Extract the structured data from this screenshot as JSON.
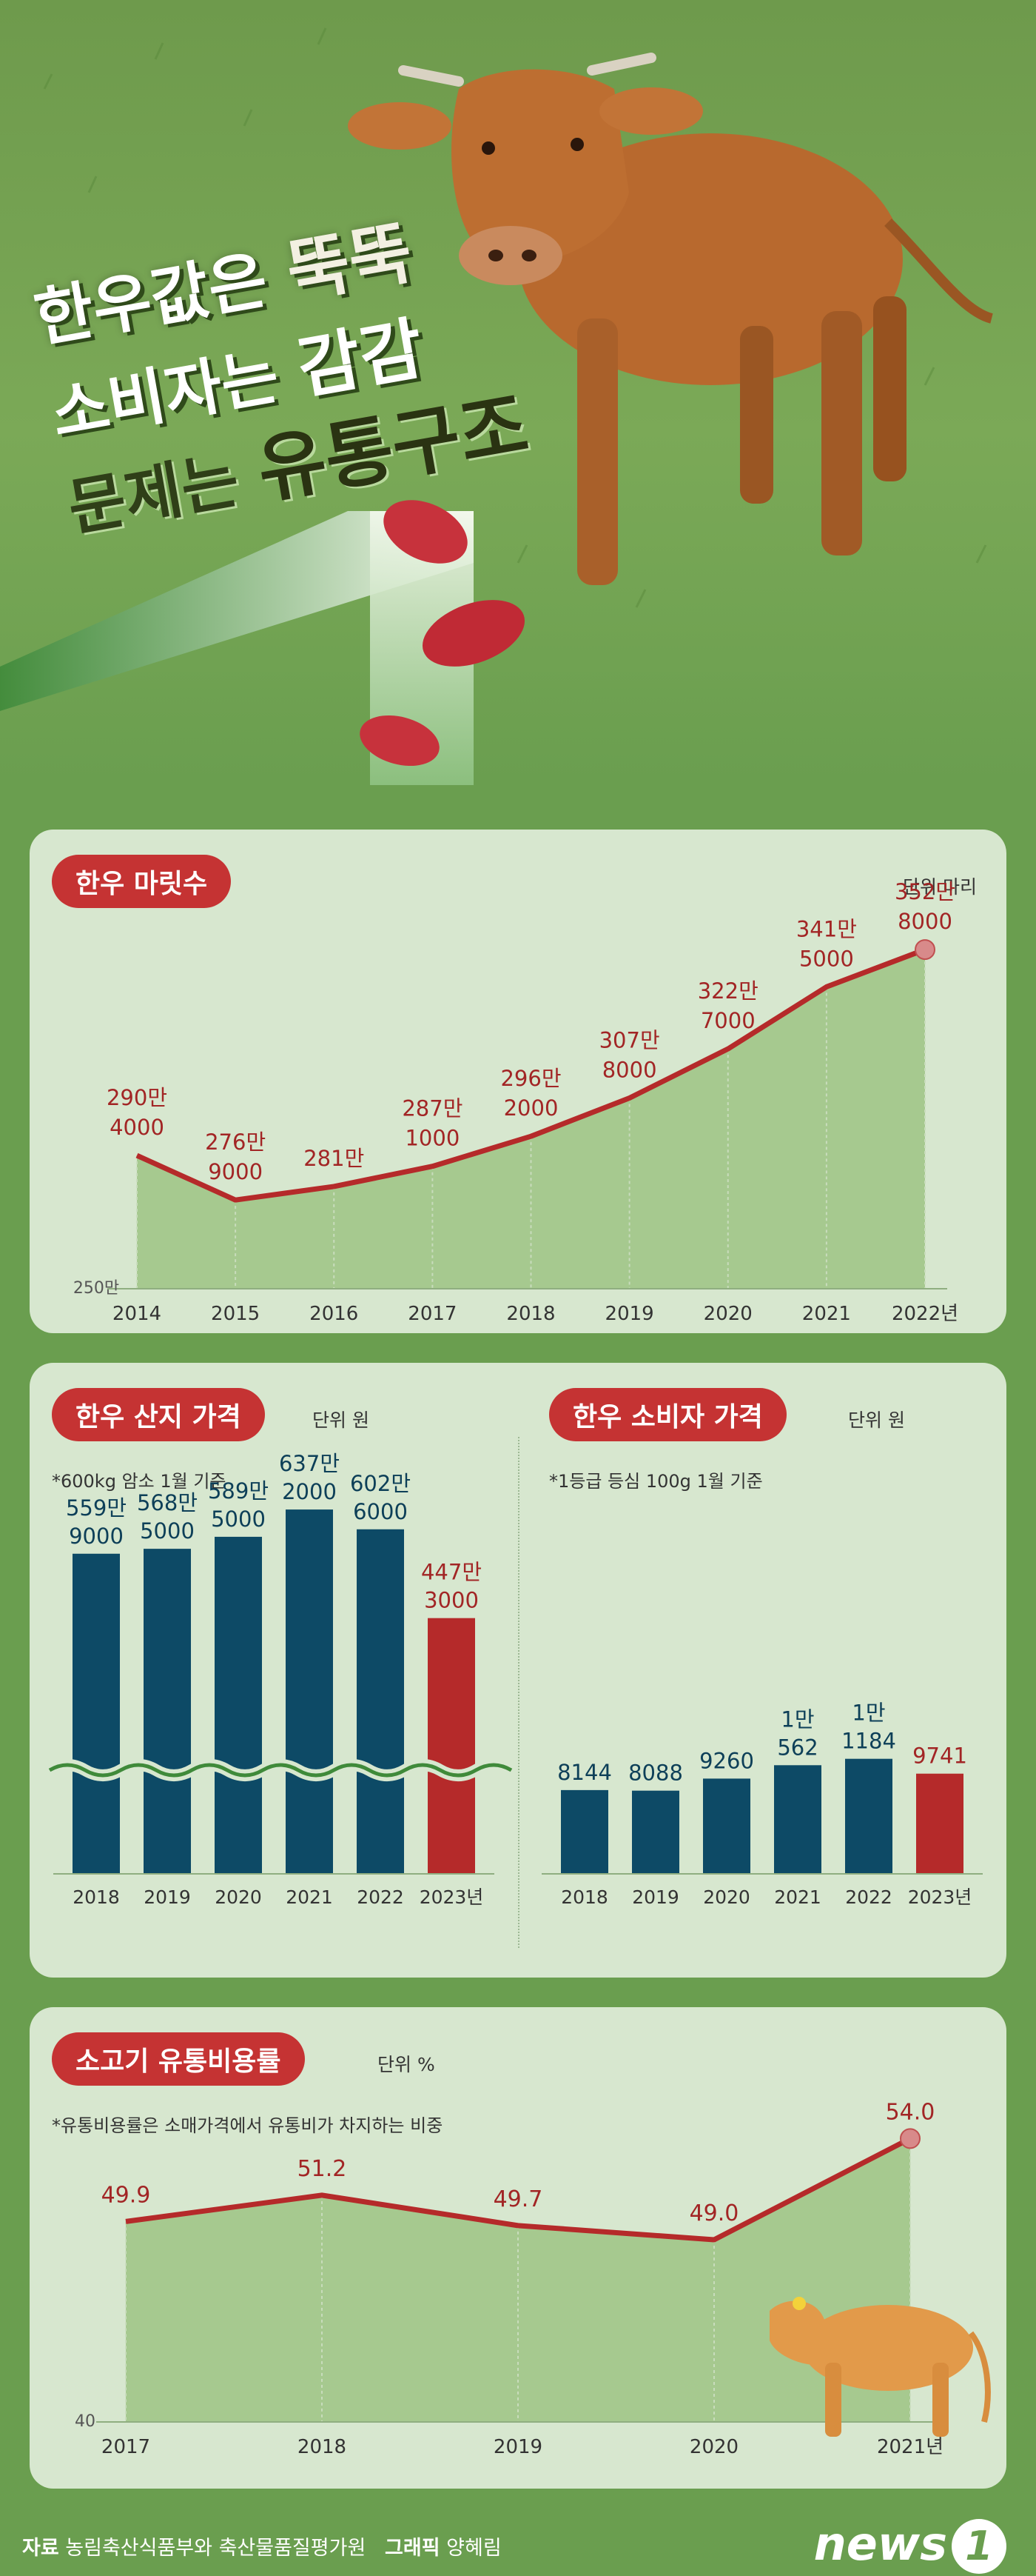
{
  "headline": {
    "line1_a": "한우값은 ",
    "line1_b": "뚝뚝",
    "line2_a": "소비자는 ",
    "line2_b": "감감",
    "line3_a": "문제는 ",
    "line3_b": "유통구조"
  },
  "colors": {
    "background": "#6a9e4f",
    "panel": "#d7e7cf",
    "accent_red": "#c53333",
    "navy": "#0d4a66",
    "line_red": "#b52a2a",
    "area_green": "#a6c98f"
  },
  "chart_data": [
    {
      "type": "area",
      "title": "한우 마릿수",
      "unit": "단위 마리",
      "x": [
        "2014",
        "2015",
        "2016",
        "2017",
        "2018",
        "2019",
        "2020",
        "2021",
        "2022년"
      ],
      "values": [
        2904000,
        2769000,
        2810000,
        2871000,
        2962000,
        3078000,
        3227000,
        3415000,
        3528000
      ],
      "labels": [
        [
          "290만",
          "4000"
        ],
        [
          "276만",
          "9000"
        ],
        [
          "281만",
          ""
        ],
        [
          "287만",
          "1000"
        ],
        [
          "296만",
          "2000"
        ],
        [
          "307만",
          "8000"
        ],
        [
          "322만",
          "7000"
        ],
        [
          "341만",
          "5000"
        ],
        [
          "352만",
          "8000"
        ]
      ],
      "ymin_label": "250만",
      "ylim": [
        2500000,
        3600000
      ]
    },
    {
      "type": "bar",
      "title": "한우 산지 가격",
      "unit": "단위 원",
      "note": "*600kg 암소 1월 기준",
      "categories": [
        "2018",
        "2019",
        "2020",
        "2021",
        "2022",
        "2023년"
      ],
      "values": [
        5599000,
        5685000,
        5895000,
        6372000,
        6026000,
        4473000
      ],
      "labels": [
        [
          "559만",
          "9000"
        ],
        [
          "568만",
          "5000"
        ],
        [
          "589만",
          "5000"
        ],
        [
          "637만",
          "2000"
        ],
        [
          "602만",
          "6000"
        ],
        [
          "447만",
          "3000"
        ]
      ],
      "axis_break": true
    },
    {
      "type": "bar",
      "title": "한우 소비자 가격",
      "unit": "단위 원",
      "note": "*1등급 등심 100g 1월 기준",
      "categories": [
        "2018",
        "2019",
        "2020",
        "2021",
        "2022",
        "2023년"
      ],
      "values": [
        8144,
        8088,
        9260,
        10562,
        11184,
        9741
      ],
      "labels": [
        [
          "8144"
        ],
        [
          "8088"
        ],
        [
          "9260"
        ],
        [
          "1만",
          "562"
        ],
        [
          "1만",
          "1184"
        ],
        [
          "9741"
        ]
      ]
    },
    {
      "type": "area",
      "title": "소고기 유통비용률",
      "unit": "단위 %",
      "note": "*유통비용률은 소매가격에서 유통비가 차지하는 비중",
      "x": [
        "2017",
        "2018",
        "2019",
        "2020",
        "2021년"
      ],
      "values": [
        49.9,
        51.2,
        49.7,
        49.0,
        54.0
      ],
      "labels": [
        "49.9",
        "51.2",
        "49.7",
        "49.0",
        "54.0"
      ],
      "ymin_label": "40",
      "ylim": [
        40,
        55
      ]
    }
  ],
  "footer": {
    "source_label": "자료",
    "source": " 농림축산식품부와 축산물품질평가원",
    "graphic_label": "그래픽",
    "graphic": " 양혜림",
    "logo_text": "news",
    "logo_num": "1"
  }
}
